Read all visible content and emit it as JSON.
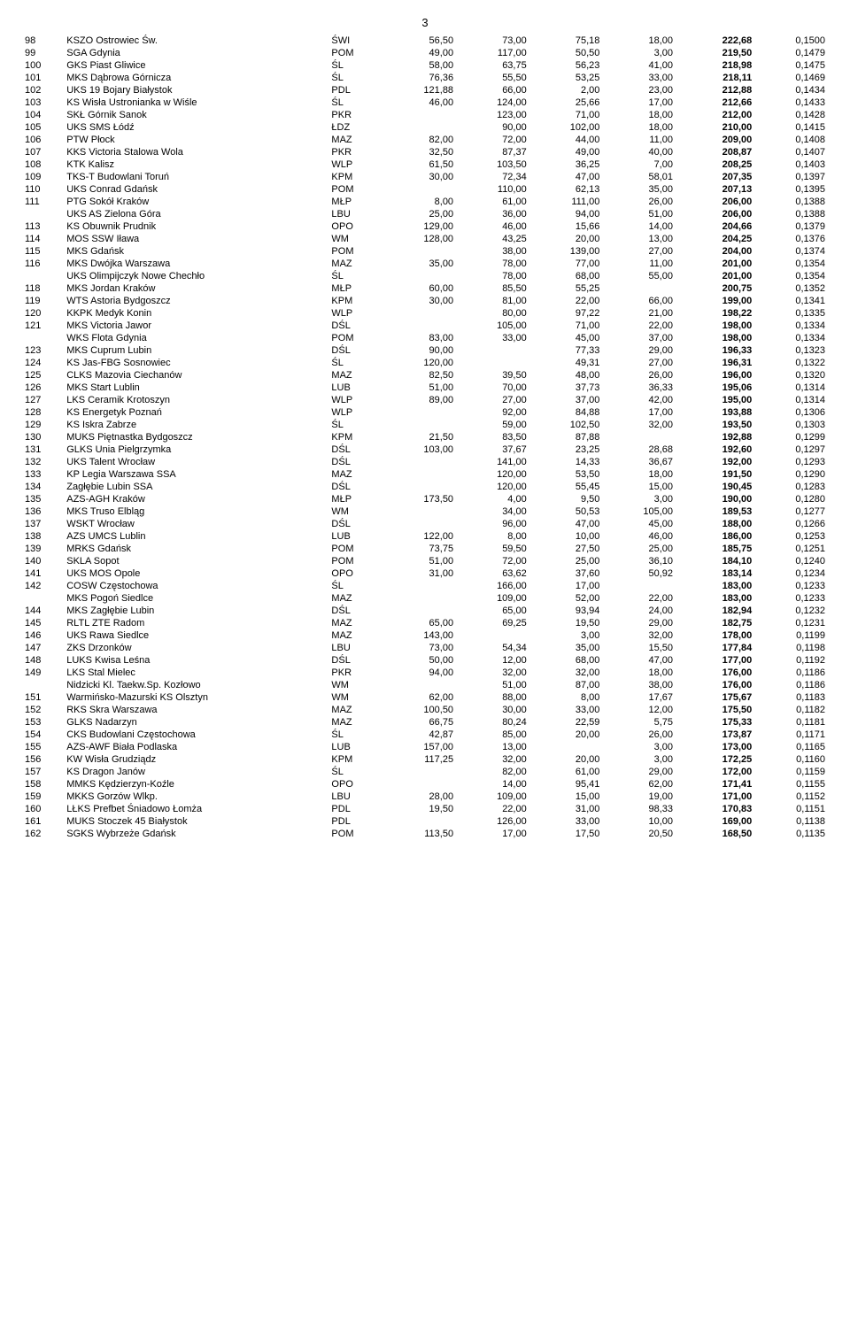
{
  "page_number": "3",
  "columns": [
    "rank",
    "name",
    "region",
    "v1",
    "v2",
    "v3",
    "v4",
    "total",
    "ratio"
  ],
  "rows": [
    [
      "98",
      "KSZO Ostrowiec Św.",
      "ŚWI",
      "56,50",
      "73,00",
      "75,18",
      "18,00",
      "222,68",
      "0,1500"
    ],
    [
      "99",
      "SGA Gdynia",
      "POM",
      "49,00",
      "117,00",
      "50,50",
      "3,00",
      "219,50",
      "0,1479"
    ],
    [
      "100",
      "GKS Piast Gliwice",
      "ŚL",
      "58,00",
      "63,75",
      "56,23",
      "41,00",
      "218,98",
      "0,1475"
    ],
    [
      "101",
      "MKS Dąbrowa Górnicza",
      "ŚL",
      "76,36",
      "55,50",
      "53,25",
      "33,00",
      "218,11",
      "0,1469"
    ],
    [
      "102",
      "UKS 19 Bojary Białystok",
      "PDL",
      "121,88",
      "66,00",
      "2,00",
      "23,00",
      "212,88",
      "0,1434"
    ],
    [
      "103",
      "KS Wisła Ustronianka w Wiśle",
      "ŚL",
      "46,00",
      "124,00",
      "25,66",
      "17,00",
      "212,66",
      "0,1433"
    ],
    [
      "104",
      "SKŁ Górnik Sanok",
      "PKR",
      "",
      "123,00",
      "71,00",
      "18,00",
      "212,00",
      "0,1428"
    ],
    [
      "105",
      "UKS SMS Łódź",
      "ŁDZ",
      "",
      "90,00",
      "102,00",
      "18,00",
      "210,00",
      "0,1415"
    ],
    [
      "106",
      "PTW Płock",
      "MAZ",
      "82,00",
      "72,00",
      "44,00",
      "11,00",
      "209,00",
      "0,1408"
    ],
    [
      "107",
      "KKS Victoria Stalowa Wola",
      "PKR",
      "32,50",
      "87,37",
      "49,00",
      "40,00",
      "208,87",
      "0,1407"
    ],
    [
      "108",
      "KTK Kalisz",
      "WLP",
      "61,50",
      "103,50",
      "36,25",
      "7,00",
      "208,25",
      "0,1403"
    ],
    [
      "109",
      "TKS-T Budowlani Toruń",
      "KPM",
      "30,00",
      "72,34",
      "47,00",
      "58,01",
      "207,35",
      "0,1397"
    ],
    [
      "110",
      "UKS Conrad Gdańsk",
      "POM",
      "",
      "110,00",
      "62,13",
      "35,00",
      "207,13",
      "0,1395"
    ],
    [
      "111",
      "PTG Sokół Kraków",
      "MŁP",
      "8,00",
      "61,00",
      "111,00",
      "26,00",
      "206,00",
      "0,1388"
    ],
    [
      "",
      "UKS AS Zielona Góra",
      "LBU",
      "25,00",
      "36,00",
      "94,00",
      "51,00",
      "206,00",
      "0,1388"
    ],
    [
      "113",
      "KS Obuwnik Prudnik",
      "OPO",
      "129,00",
      "46,00",
      "15,66",
      "14,00",
      "204,66",
      "0,1379"
    ],
    [
      "114",
      "MOS SSW Iława",
      "WM",
      "128,00",
      "43,25",
      "20,00",
      "13,00",
      "204,25",
      "0,1376"
    ],
    [
      "115",
      "MKS Gdańsk",
      "POM",
      "",
      "38,00",
      "139,00",
      "27,00",
      "204,00",
      "0,1374"
    ],
    [
      "116",
      "MKS Dwójka Warszawa",
      "MAZ",
      "35,00",
      "78,00",
      "77,00",
      "11,00",
      "201,00",
      "0,1354"
    ],
    [
      "",
      "UKS Olimpijczyk Nowe Chechło",
      "ŚL",
      "",
      "78,00",
      "68,00",
      "55,00",
      "201,00",
      "0,1354"
    ],
    [
      "118",
      "MKS Jordan Kraków",
      "MŁP",
      "60,00",
      "85,50",
      "55,25",
      "",
      "200,75",
      "0,1352"
    ],
    [
      "119",
      "WTS Astoria Bydgoszcz",
      "KPM",
      "30,00",
      "81,00",
      "22,00",
      "66,00",
      "199,00",
      "0,1341"
    ],
    [
      "120",
      "KKPK Medyk Konin",
      "WLP",
      "",
      "80,00",
      "97,22",
      "21,00",
      "198,22",
      "0,1335"
    ],
    [
      "121",
      "MKS Victoria Jawor",
      "DŚL",
      "",
      "105,00",
      "71,00",
      "22,00",
      "198,00",
      "0,1334"
    ],
    [
      "",
      "WKS Flota Gdynia",
      "POM",
      "83,00",
      "33,00",
      "45,00",
      "37,00",
      "198,00",
      "0,1334"
    ],
    [
      "123",
      "MKS Cuprum Lubin",
      "DŚL",
      "90,00",
      "",
      "77,33",
      "29,00",
      "196,33",
      "0,1323"
    ],
    [
      "124",
      "KS Jas-FBG Sosnowiec",
      "ŚL",
      "120,00",
      "",
      "49,31",
      "27,00",
      "196,31",
      "0,1322"
    ],
    [
      "125",
      "CLKS Mazovia Ciechanów",
      "MAZ",
      "82,50",
      "39,50",
      "48,00",
      "26,00",
      "196,00",
      "0,1320"
    ],
    [
      "126",
      "MKS Start Lublin",
      "LUB",
      "51,00",
      "70,00",
      "37,73",
      "36,33",
      "195,06",
      "0,1314"
    ],
    [
      "127",
      "LKS Ceramik Krotoszyn",
      "WLP",
      "89,00",
      "27,00",
      "37,00",
      "42,00",
      "195,00",
      "0,1314"
    ],
    [
      "128",
      "KS Energetyk Poznań",
      "WLP",
      "",
      "92,00",
      "84,88",
      "17,00",
      "193,88",
      "0,1306"
    ],
    [
      "129",
      "KS Iskra Zabrze",
      "ŚL",
      "",
      "59,00",
      "102,50",
      "32,00",
      "193,50",
      "0,1303"
    ],
    [
      "130",
      "MUKS Piętnastka Bydgoszcz",
      "KPM",
      "21,50",
      "83,50",
      "87,88",
      "",
      "192,88",
      "0,1299"
    ],
    [
      "131",
      "GLKS Unia Pielgrzymka",
      "DŚL",
      "103,00",
      "37,67",
      "23,25",
      "28,68",
      "192,60",
      "0,1297"
    ],
    [
      "132",
      "UKS Talent Wrocław",
      "DŚL",
      "",
      "141,00",
      "14,33",
      "36,67",
      "192,00",
      "0,1293"
    ],
    [
      "133",
      "KP Legia Warszawa SSA",
      "MAZ",
      "",
      "120,00",
      "53,50",
      "18,00",
      "191,50",
      "0,1290"
    ],
    [
      "134",
      "Zagłębie Lubin SSA",
      "DŚL",
      "",
      "120,00",
      "55,45",
      "15,00",
      "190,45",
      "0,1283"
    ],
    [
      "135",
      "AZS-AGH Kraków",
      "MŁP",
      "173,50",
      "4,00",
      "9,50",
      "3,00",
      "190,00",
      "0,1280"
    ],
    [
      "136",
      "MKS Truso Elbląg",
      "WM",
      "",
      "34,00",
      "50,53",
      "105,00",
      "189,53",
      "0,1277"
    ],
    [
      "137",
      "WSKT Wrocław",
      "DŚL",
      "",
      "96,00",
      "47,00",
      "45,00",
      "188,00",
      "0,1266"
    ],
    [
      "138",
      "AZS UMCS Lublin",
      "LUB",
      "122,00",
      "8,00",
      "10,00",
      "46,00",
      "186,00",
      "0,1253"
    ],
    [
      "139",
      "MRKS Gdańsk",
      "POM",
      "73,75",
      "59,50",
      "27,50",
      "25,00",
      "185,75",
      "0,1251"
    ],
    [
      "140",
      "SKLA Sopot",
      "POM",
      "51,00",
      "72,00",
      "25,00",
      "36,10",
      "184,10",
      "0,1240"
    ],
    [
      "141",
      "UKS MOS Opole",
      "OPO",
      "31,00",
      "63,62",
      "37,60",
      "50,92",
      "183,14",
      "0,1234"
    ],
    [
      "142",
      "COSW Częstochowa",
      "ŚL",
      "",
      "166,00",
      "17,00",
      "",
      "183,00",
      "0,1233"
    ],
    [
      "",
      "MKS Pogoń Siedlce",
      "MAZ",
      "",
      "109,00",
      "52,00",
      "22,00",
      "183,00",
      "0,1233"
    ],
    [
      "144",
      "MKS Zagłębie Lubin",
      "DŚL",
      "",
      "65,00",
      "93,94",
      "24,00",
      "182,94",
      "0,1232"
    ],
    [
      "145",
      "RLTL ZTE Radom",
      "MAZ",
      "65,00",
      "69,25",
      "19,50",
      "29,00",
      "182,75",
      "0,1231"
    ],
    [
      "146",
      "UKS Rawa Siedlce",
      "MAZ",
      "143,00",
      "",
      "3,00",
      "32,00",
      "178,00",
      "0,1199"
    ],
    [
      "147",
      "ZKS Drzonków",
      "LBU",
      "73,00",
      "54,34",
      "35,00",
      "15,50",
      "177,84",
      "0,1198"
    ],
    [
      "148",
      "LUKS Kwisa Leśna",
      "DŚL",
      "50,00",
      "12,00",
      "68,00",
      "47,00",
      "177,00",
      "0,1192"
    ],
    [
      "149",
      "LKS Stal Mielec",
      "PKR",
      "94,00",
      "32,00",
      "32,00",
      "18,00",
      "176,00",
      "0,1186"
    ],
    [
      "",
      "Nidzicki Kl. Taekw.Sp. Kozłowo",
      "WM",
      "",
      "51,00",
      "87,00",
      "38,00",
      "176,00",
      "0,1186"
    ],
    [
      "151",
      "Warmińsko-Mazurski KS Olsztyn",
      "WM",
      "62,00",
      "88,00",
      "8,00",
      "17,67",
      "175,67",
      "0,1183"
    ],
    [
      "152",
      "RKS Skra Warszawa",
      "MAZ",
      "100,50",
      "30,00",
      "33,00",
      "12,00",
      "175,50",
      "0,1182"
    ],
    [
      "153",
      "GLKS Nadarzyn",
      "MAZ",
      "66,75",
      "80,24",
      "22,59",
      "5,75",
      "175,33",
      "0,1181"
    ],
    [
      "154",
      "CKS Budowlani Częstochowa",
      "ŚL",
      "42,87",
      "85,00",
      "20,00",
      "26,00",
      "173,87",
      "0,1171"
    ],
    [
      "155",
      "AZS-AWF Biała Podlaska",
      "LUB",
      "157,00",
      "13,00",
      "",
      "3,00",
      "173,00",
      "0,1165"
    ],
    [
      "156",
      "KW Wisła Grudziądz",
      "KPM",
      "117,25",
      "32,00",
      "20,00",
      "3,00",
      "172,25",
      "0,1160"
    ],
    [
      "157",
      "KS Dragon Janów",
      "ŚL",
      "",
      "82,00",
      "61,00",
      "29,00",
      "172,00",
      "0,1159"
    ],
    [
      "158",
      "MMKS Kędzierzyn-Koźle",
      "OPO",
      "",
      "14,00",
      "95,41",
      "62,00",
      "171,41",
      "0,1155"
    ],
    [
      "159",
      "MKKS Gorzów Wlkp.",
      "LBU",
      "28,00",
      "109,00",
      "15,00",
      "19,00",
      "171,00",
      "0,1152"
    ],
    [
      "160",
      "LŁKS Prefbet Śniadowo Łomża",
      "PDL",
      "19,50",
      "22,00",
      "31,00",
      "98,33",
      "170,83",
      "0,1151"
    ],
    [
      "161",
      "MUKS Stoczek 45 Białystok",
      "PDL",
      "",
      "126,00",
      "33,00",
      "10,00",
      "169,00",
      "0,1138"
    ],
    [
      "162",
      "SGKS Wybrzeże Gdańsk",
      "POM",
      "113,50",
      "17,00",
      "17,50",
      "20,50",
      "168,50",
      "0,1135"
    ]
  ]
}
